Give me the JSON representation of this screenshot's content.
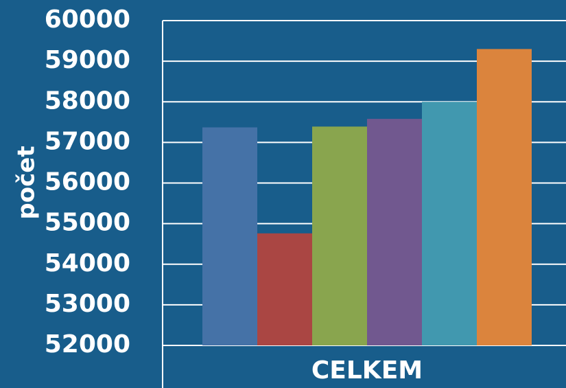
{
  "chart_data": {
    "type": "bar",
    "y_label": "počet",
    "categories": [
      "CELKEM"
    ],
    "series": [
      {
        "color": "#4572a7",
        "values": [
          57370
        ]
      },
      {
        "color": "#aa4643",
        "values": [
          54760
        ]
      },
      {
        "color": "#89a54e",
        "values": [
          57390
        ]
      },
      {
        "color": "#71588f",
        "values": [
          57580
        ]
      },
      {
        "color": "#4198af",
        "values": [
          58000
        ]
      },
      {
        "color": "#db843d",
        "values": [
          59300
        ]
      }
    ],
    "ylim": [
      52000,
      60000
    ],
    "yticks": [
      52000,
      53000,
      54000,
      55000,
      56000,
      57000,
      58000,
      59000,
      60000
    ],
    "grid": true
  }
}
